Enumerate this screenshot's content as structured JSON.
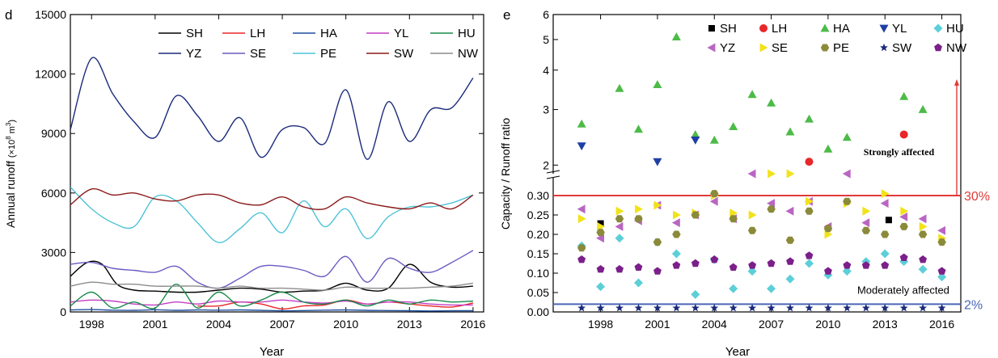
{
  "chart_data": [
    {
      "type": "line",
      "panel_label": "d",
      "xlabel": "Year",
      "ylabel_main": "Annual runoff",
      "ylabel_unit": "(×10",
      "ylabel_exp": "8",
      "ylabel_unit2": " m",
      "ylabel_exp2": "3",
      "ylabel_close": ")",
      "xlim": [
        1997,
        2016.5
      ],
      "ylim": [
        0,
        15000
      ],
      "xticks": [
        1998,
        2001,
        2004,
        2007,
        2010,
        2013,
        2016
      ],
      "yticks": [
        0,
        3000,
        6000,
        9000,
        12000,
        15000
      ],
      "legend_position": "top-right",
      "series": [
        {
          "name": "SH",
          "color": "#000000",
          "x": [
            1997,
            1997.8,
            1998.5,
            1999.2,
            2000,
            2001,
            2002,
            2003,
            2004,
            2005,
            2006,
            2007,
            2008,
            2009,
            2010,
            2011,
            2012,
            2013,
            2014,
            2015,
            2016
          ],
          "y": [
            1800,
            2500,
            2400,
            1400,
            1100,
            1050,
            1000,
            1000,
            1100,
            1200,
            1150,
            1000,
            1050,
            1100,
            1450,
            1100,
            1200,
            2400,
            1500,
            1250,
            1300
          ]
        },
        {
          "name": "LH",
          "color": "#e8272a",
          "x": [
            2003,
            2004,
            2005,
            2006,
            2007,
            2008,
            2009,
            2010,
            2011,
            2012,
            2013,
            2014,
            2015,
            2016
          ],
          "y": [
            300,
            300,
            500,
            400,
            150,
            300,
            350,
            600,
            400,
            500,
            400,
            300,
            250,
            450
          ]
        },
        {
          "name": "HA",
          "color": "#1f4fa0",
          "x": [
            1997,
            1998,
            1999,
            2000,
            2001,
            2002,
            2003,
            2004,
            2005,
            2006,
            2007,
            2008,
            2009,
            2010,
            2011,
            2012,
            2013,
            2014,
            2015,
            2016
          ],
          "y": [
            100,
            120,
            90,
            80,
            110,
            80,
            100,
            90,
            100,
            80,
            60,
            70,
            90,
            100,
            80,
            70,
            60,
            50,
            60,
            60
          ]
        },
        {
          "name": "YL",
          "color": "#c43ec4",
          "x": [
            1997,
            1998,
            1999,
            2000,
            2001,
            2002,
            2003,
            2004,
            2005,
            2006,
            2007,
            2008,
            2009,
            2010,
            2011,
            2012,
            2013,
            2014,
            2015,
            2016
          ],
          "y": [
            500,
            600,
            550,
            400,
            350,
            500,
            400,
            550,
            500,
            500,
            600,
            500,
            450,
            550,
            400,
            500,
            500,
            400,
            350,
            350
          ]
        },
        {
          "name": "HU",
          "color": "#1a8a4a",
          "x": [
            1997,
            1998,
            1999,
            2000,
            2001,
            2002,
            2003,
            2004,
            2005,
            2006,
            2007,
            2008,
            2009,
            2010,
            2011,
            2012,
            2013,
            2014,
            2015,
            2016
          ],
          "y": [
            300,
            1000,
            200,
            500,
            200,
            1400,
            200,
            1000,
            300,
            600,
            1000,
            500,
            400,
            600,
            300,
            600,
            400,
            600,
            500,
            550
          ]
        },
        {
          "name": "YZ",
          "color": "#1b2a7b",
          "x": [
            1997,
            1998,
            1999,
            2000,
            2001,
            2002,
            2003,
            2004,
            2005,
            2006,
            2007,
            2008,
            2009,
            2010,
            2011,
            2012,
            2013,
            2014,
            2015,
            2016
          ],
          "y": [
            9200,
            12800,
            11000,
            9600,
            8800,
            10900,
            9900,
            8600,
            9800,
            7800,
            9200,
            9300,
            8500,
            11200,
            7700,
            10600,
            8600,
            10200,
            10300,
            11800
          ]
        },
        {
          "name": "SE",
          "color": "#6a5ac2",
          "x": [
            1997,
            1998,
            1999,
            2000,
            2001,
            2002,
            2003,
            2004,
            2005,
            2006,
            2007,
            2008,
            2009,
            2010,
            2011,
            2012,
            2013,
            2014,
            2015,
            2016
          ],
          "y": [
            2400,
            2500,
            2200,
            2100,
            2000,
            2300,
            1500,
            1200,
            1700,
            2300,
            2300,
            2100,
            1800,
            2800,
            1500,
            2700,
            2200,
            2000,
            2500,
            3100
          ]
        },
        {
          "name": "PE",
          "color": "#4fc3d8",
          "x": [
            1997,
            1998,
            1999,
            2000,
            2001,
            2002,
            2003,
            2004,
            2005,
            2006,
            2007,
            2008,
            2009,
            2010,
            2011,
            2012,
            2013,
            2014,
            2015,
            2016
          ],
          "y": [
            6300,
            5200,
            4500,
            4300,
            5800,
            5600,
            4500,
            3500,
            4200,
            5000,
            4000,
            5600,
            4300,
            5200,
            3700,
            4800,
            5300,
            5300,
            5500,
            5900
          ]
        },
        {
          "name": "SW",
          "color": "#8b1a1a",
          "x": [
            1997,
            1998,
            1999,
            2000,
            2001,
            2002,
            2003,
            2004,
            2005,
            2006,
            2007,
            2008,
            2009,
            2010,
            2011,
            2012,
            2013,
            2014,
            2015,
            2016
          ],
          "y": [
            5400,
            6200,
            5900,
            6000,
            5700,
            5600,
            5900,
            5900,
            5500,
            5400,
            5800,
            5300,
            5200,
            5800,
            5500,
            5300,
            5200,
            5500,
            5200,
            5900
          ]
        },
        {
          "name": "NW",
          "color": "#8c8c8c",
          "x": [
            1997,
            1998,
            1999,
            2000,
            2001,
            2002,
            2003,
            2004,
            2005,
            2006,
            2007,
            2008,
            2009,
            2010,
            2011,
            2012,
            2013,
            2014,
            2015,
            2016
          ],
          "y": [
            1300,
            1500,
            1400,
            1400,
            1300,
            1300,
            1300,
            1200,
            1300,
            1200,
            1200,
            1150,
            1100,
            1250,
            1200,
            1200,
            1200,
            1250,
            1300,
            1450
          ]
        }
      ]
    },
    {
      "type": "scatter",
      "panel_label": "e",
      "xlabel": "Year",
      "ylabel": "Capacity / Runoff ratio",
      "xlim": [
        1995.5,
        2017
      ],
      "xticks": [
        1998,
        2001,
        2004,
        2007,
        2010,
        2013,
        2016
      ],
      "y_scale": "broken: linear 0–0.30 below, log 1.9–6 above",
      "yticks_lower": [
        "0.00",
        "0.05",
        "0.10",
        "0.15",
        "0.20",
        "0.25",
        "0.30"
      ],
      "yticks_upper": [
        "2",
        "3",
        "4",
        "5",
        "6"
      ],
      "yticks_lower_values": [
        0,
        0.05,
        0.1,
        0.15,
        0.2,
        0.25,
        0.3
      ],
      "yticks_upper_values": [
        2,
        3,
        4,
        5,
        6
      ],
      "threshold_lines": [
        {
          "value": 0.3,
          "label": "30%",
          "color": "#e03a3a"
        },
        {
          "value": 0.02,
          "label": "2%",
          "color": "#4a66b8"
        }
      ],
      "annotations": [
        {
          "text": "Strongly affected",
          "x": 2015.6,
          "y": 2.45
        },
        {
          "text": "Moderately affected",
          "x": 2016.4,
          "y": 0.045
        }
      ],
      "legend_position": "top-right",
      "series": [
        {
          "name": "SH",
          "marker": "square",
          "color": "#000000",
          "x": [
            1998,
            2013.2
          ],
          "y": [
            0.228,
            0.237
          ]
        },
        {
          "name": "LH",
          "marker": "circle",
          "color": "#e8272a",
          "x": [
            2009,
            2014
          ],
          "y": [
            2.05,
            2.5
          ]
        },
        {
          "name": "HA",
          "marker": "triangle-up",
          "color": "#4cbb47",
          "x": [
            1997,
            1999,
            2000,
            2001,
            2002,
            2003,
            2004,
            2005,
            2006,
            2007,
            2008,
            2009,
            2010,
            2011,
            2014,
            2015
          ],
          "y": [
            2.7,
            3.5,
            2.6,
            3.6,
            5.1,
            2.5,
            2.4,
            2.65,
            3.35,
            3.15,
            2.55,
            2.8,
            2.25,
            2.45,
            3.3,
            3.0
          ]
        },
        {
          "name": "YL",
          "marker": "triangle-down",
          "color": "#1f3ea6",
          "x": [
            1997,
            2001,
            2003
          ],
          "y": [
            2.3,
            2.05,
            2.4
          ]
        },
        {
          "name": "HU",
          "marker": "diamond",
          "color": "#5ccfd8",
          "x": [
            1997,
            1998,
            1999,
            2000,
            2001,
            2002,
            2003,
            2004,
            2005,
            2006,
            2007,
            2008,
            2009,
            2010,
            2011,
            2012,
            2013,
            2014,
            2015,
            2016
          ],
          "y": [
            0.17,
            0.065,
            0.19,
            0.075,
            0.18,
            0.15,
            0.045,
            0.135,
            0.06,
            0.105,
            0.06,
            0.085,
            0.125,
            0.095,
            0.105,
            0.13,
            0.15,
            0.13,
            0.11,
            0.09
          ]
        },
        {
          "name": "YZ",
          "marker": "triangle-left",
          "color": "#b966c2",
          "x": [
            1997,
            1998,
            1999,
            2000,
            2001,
            2002,
            2003,
            2004,
            2005,
            2006,
            2007,
            2008,
            2009,
            2010,
            2011,
            2012,
            2013,
            2014,
            2015,
            2016
          ],
          "y": [
            0.265,
            0.19,
            0.22,
            0.235,
            0.275,
            0.23,
            0.25,
            0.285,
            0.24,
            0.31,
            0.28,
            0.26,
            0.285,
            0.22,
            0.325,
            0.23,
            0.28,
            0.245,
            0.24,
            0.21
          ]
        },
        {
          "name": "SE",
          "marker": "triangle-right",
          "color": "#f2e21a",
          "x": [
            1997,
            1998,
            1999,
            2000,
            2001,
            2002,
            2003,
            2004,
            2005,
            2006,
            2007,
            2008,
            2009,
            2010,
            2011,
            2012,
            2013,
            2014,
            2015,
            2016
          ],
          "y": [
            0.24,
            0.22,
            0.26,
            0.265,
            0.275,
            0.25,
            0.255,
            0.3,
            0.255,
            0.25,
            1.7,
            1.75,
            0.285,
            0.2,
            0.28,
            0.26,
            0.305,
            0.26,
            0.22,
            0.19
          ]
        },
        {
          "name": "PE",
          "marker": "hexagon",
          "color": "#8a8a3a",
          "x": [
            1997,
            1998,
            1999,
            2000,
            2001,
            2002,
            2003,
            2004,
            2005,
            2006,
            2007,
            2008,
            2009,
            2010,
            2011,
            2012,
            2013,
            2014,
            2015,
            2016
          ],
          "y": [
            0.165,
            0.205,
            0.24,
            0.24,
            0.18,
            0.2,
            0.25,
            0.305,
            0.24,
            0.21,
            0.265,
            0.185,
            0.26,
            0.215,
            0.285,
            0.21,
            0.2,
            0.22,
            0.2,
            0.18
          ]
        },
        {
          "name": "SW",
          "marker": "star",
          "color": "#1b2a7b",
          "x": [
            1997,
            1998,
            1999,
            2000,
            2001,
            2002,
            2003,
            2004,
            2005,
            2006,
            2007,
            2008,
            2009,
            2010,
            2011,
            2012,
            2013,
            2014,
            2015,
            2016
          ],
          "y": [
            0.01,
            0.01,
            0.01,
            0.01,
            0.01,
            0.01,
            0.01,
            0.01,
            0.01,
            0.01,
            0.01,
            0.01,
            0.01,
            0.01,
            0.01,
            0.01,
            0.01,
            0.01,
            0.01,
            0.01
          ]
        },
        {
          "name": "NW",
          "marker": "pentagon",
          "color": "#7b1f8a",
          "x": [
            1997,
            1998,
            1999,
            2000,
            2001,
            2002,
            2003,
            2004,
            2005,
            2006,
            2007,
            2008,
            2009,
            2010,
            2011,
            2012,
            2013,
            2014,
            2015,
            2016
          ],
          "y": [
            0.135,
            0.11,
            0.11,
            0.115,
            0.105,
            0.12,
            0.125,
            0.135,
            0.115,
            0.12,
            0.125,
            0.13,
            0.145,
            0.105,
            0.12,
            0.12,
            0.12,
            0.14,
            0.135,
            0.105
          ]
        }
      ]
    }
  ]
}
